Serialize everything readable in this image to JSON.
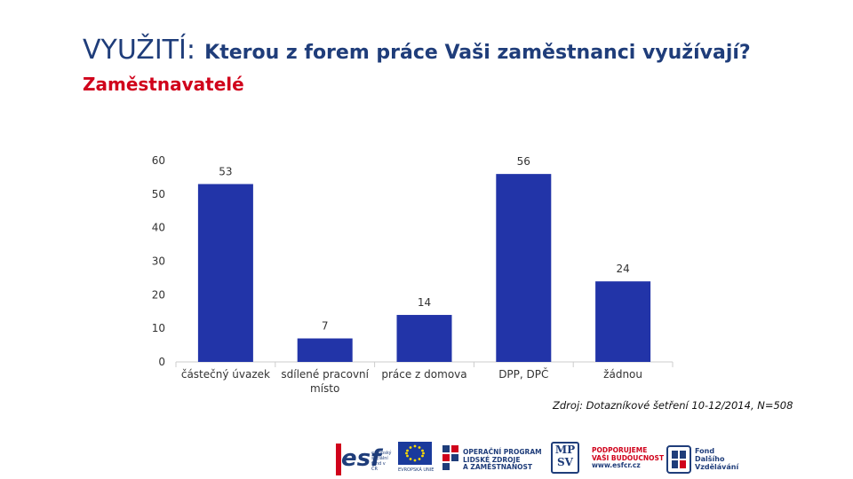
{
  "header": {
    "title_main": "VYUŽITÍ:",
    "title_rest": "Kterou z forem práce Vaši zaměstnanci využívají?",
    "subtitle": "Zaměstnavatelé"
  },
  "chart_data": {
    "type": "bar",
    "categories": [
      "částečný úvazek",
      "sdílené pracovní místo",
      "práce z domova",
      "DPP, DPČ",
      "žádnou"
    ],
    "values": [
      53,
      7,
      14,
      56,
      24
    ],
    "ylim": [
      0,
      60
    ],
    "yticks": [
      0,
      10,
      20,
      30,
      40,
      50,
      60
    ],
    "grid": false,
    "bar_color": "#2234a8"
  },
  "source": "Zdroj: Dotazníkové šetření 10-12/2014, N=508",
  "logos": {
    "esf_text": "esf",
    "esf_sub": "evropský sociální fond v ČR",
    "eu_text": "EVROPSKÁ UNIE",
    "op_line1": "OPERAČNÍ PROGRAM",
    "op_line2": "LIDSKÉ ZDROJE",
    "op_line3": "A ZAMĚSTNANOST",
    "mpsv_line1": "MP",
    "mpsv_line2": "SV",
    "slogan_line1": "PODPORUJEME",
    "slogan_line2": "VAŠI BUDOUCNOST",
    "slogan_url": "www.esfcr.cz",
    "fdv_line1": "Fond",
    "fdv_line2": "Dalšího",
    "fdv_line3": "Vzdělávání",
    "colors": {
      "navy": "#1f3d7a",
      "red": "#d0021b",
      "eu_blue": "#1a3a9c",
      "eu_star": "#ffdd00"
    }
  }
}
